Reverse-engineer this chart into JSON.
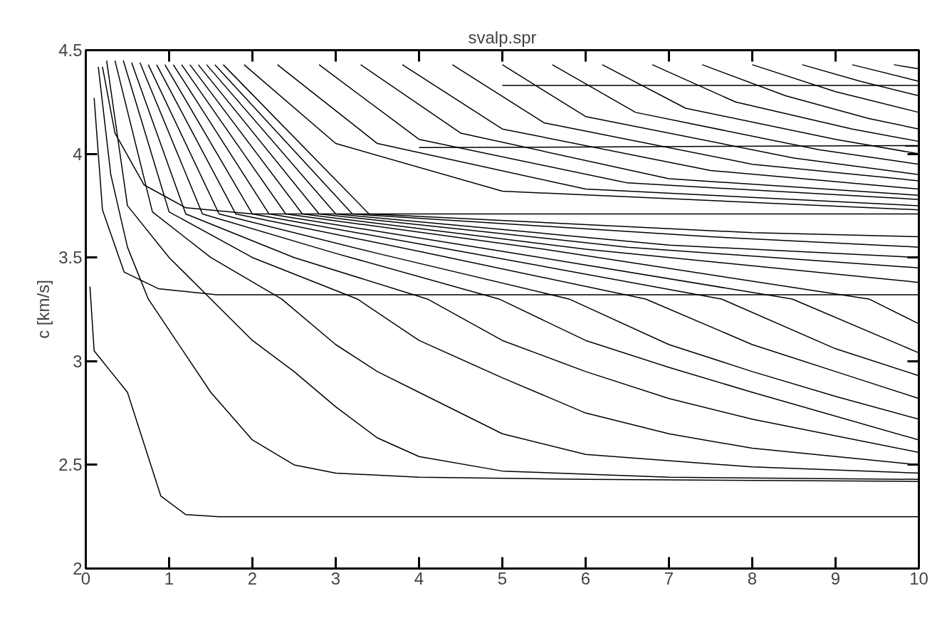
{
  "chart_data": {
    "type": "line",
    "title": "svalp.spr",
    "ylabel": "c [km/s]",
    "xlim": [
      0,
      10
    ],
    "ylim": [
      2,
      4.5
    ],
    "xticks": [
      0,
      1,
      2,
      3,
      4,
      5,
      6,
      7,
      8,
      9,
      10
    ],
    "yticks": [
      2,
      2.5,
      3,
      3.5,
      4,
      4.5
    ],
    "series": [
      {
        "color": "#000000",
        "x": [
          0.05,
          0.1,
          0.3,
          0.5,
          0.7,
          0.9,
          1.2,
          1.6,
          3,
          10
        ],
        "values": [
          3.36,
          3.05,
          2.95,
          2.85,
          2.6,
          2.35,
          2.26,
          2.25,
          2.25,
          2.25
        ]
      },
      {
        "color": "#000000",
        "x": [
          0.15,
          0.3,
          0.5,
          0.75,
          1.0,
          1.5,
          2.0,
          2.5,
          3,
          4,
          6,
          10
        ],
        "values": [
          4.42,
          3.9,
          3.55,
          3.3,
          3.15,
          2.85,
          2.62,
          2.5,
          2.46,
          2.44,
          2.43,
          2.42
        ]
      },
      {
        "color": "#000000",
        "x": [
          0.25,
          0.5,
          1.0,
          1.5,
          2,
          2.5,
          3,
          3.5,
          4,
          5,
          7,
          10
        ],
        "values": [
          4.45,
          3.75,
          3.5,
          3.3,
          3.1,
          2.95,
          2.78,
          2.63,
          2.54,
          2.47,
          2.44,
          2.43
        ]
      },
      {
        "color": "#000000",
        "x": [
          0.35,
          0.8,
          1.5,
          2.35,
          3,
          3.5,
          4,
          5,
          6,
          8,
          10
        ],
        "values": [
          4.45,
          3.72,
          3.5,
          3.3,
          3.08,
          2.95,
          2.85,
          2.65,
          2.55,
          2.49,
          2.46
        ]
      },
      {
        "color": "#000000",
        "x": [
          0.45,
          1.0,
          2,
          3.26,
          4,
          5,
          6,
          7,
          8,
          10
        ],
        "values": [
          4.45,
          3.72,
          3.5,
          3.3,
          3.1,
          2.92,
          2.75,
          2.65,
          2.58,
          2.5
        ]
      },
      {
        "color": "#000000",
        "x": [
          0.55,
          1.2,
          2.5,
          4.1,
          5,
          6,
          7,
          8,
          10
        ],
        "values": [
          4.44,
          3.71,
          3.5,
          3.3,
          3.1,
          2.95,
          2.82,
          2.72,
          2.56
        ]
      },
      {
        "color": "#000000",
        "x": [
          0.65,
          1.4,
          3,
          4.96,
          6,
          7,
          8,
          10
        ],
        "values": [
          4.44,
          3.71,
          3.52,
          3.3,
          3.1,
          2.97,
          2.85,
          2.62
        ]
      },
      {
        "color": "#000000",
        "x": [
          0.75,
          1.6,
          3.5,
          5.8,
          7,
          8,
          9,
          10
        ],
        "values": [
          4.43,
          3.71,
          3.52,
          3.3,
          3.08,
          2.95,
          2.83,
          2.72
        ]
      },
      {
        "color": "#000000",
        "x": [
          0.85,
          1.8,
          4,
          6.72,
          8,
          9,
          10
        ],
        "values": [
          4.43,
          3.71,
          3.53,
          3.3,
          3.08,
          2.95,
          2.82
        ]
      },
      {
        "color": "#000000",
        "x": [
          0.95,
          2.0,
          4.5,
          7.63,
          9,
          10
        ],
        "values": [
          4.43,
          3.71,
          3.53,
          3.3,
          3.06,
          2.93
        ]
      },
      {
        "color": "#000000",
        "x": [
          1.05,
          2.2,
          5,
          8.48,
          10
        ],
        "values": [
          4.43,
          3.71,
          3.53,
          3.3,
          3.04
        ]
      },
      {
        "color": "#000000",
        "x": [
          1.15,
          2.4,
          5.5,
          9.4,
          10
        ],
        "values": [
          4.43,
          3.71,
          3.54,
          3.3,
          3.18
        ]
      },
      {
        "color": "#000000",
        "x": [
          1.25,
          2.6,
          6,
          10
        ],
        "values": [
          4.43,
          3.71,
          3.54,
          3.38
        ]
      },
      {
        "color": "#000000",
        "x": [
          1.35,
          2.8,
          6.5,
          10
        ],
        "values": [
          4.43,
          3.71,
          3.55,
          3.45
        ]
      },
      {
        "color": "#000000",
        "x": [
          1.45,
          3.0,
          7,
          10
        ],
        "values": [
          4.43,
          3.71,
          3.56,
          3.5
        ]
      },
      {
        "color": "#000000",
        "x": [
          1.55,
          3.2,
          7.5,
          10
        ],
        "values": [
          4.43,
          3.71,
          3.6,
          3.55
        ]
      },
      {
        "color": "#000000",
        "x": [
          1.65,
          3.4,
          8,
          10
        ],
        "values": [
          4.43,
          3.71,
          3.62,
          3.6
        ]
      },
      {
        "color": "#000000",
        "x": [
          0.1,
          0.2,
          0.46,
          0.87,
          1.57,
          5,
          10
        ],
        "values": [
          4.27,
          3.73,
          3.43,
          3.35,
          3.32,
          3.32,
          3.32
        ]
      },
      {
        "color": "#000000",
        "x": [
          0.2,
          0.35,
          0.7,
          1.2,
          2,
          10
        ],
        "values": [
          4.42,
          4.1,
          3.85,
          3.74,
          3.71,
          3.71
        ]
      },
      {
        "color": "#000000",
        "x": [
          1.9,
          3,
          5,
          10
        ],
        "values": [
          4.43,
          4.05,
          3.82,
          3.73
        ]
      },
      {
        "color": "#000000",
        "x": [
          2.3,
          3.5,
          6,
          10
        ],
        "values": [
          4.43,
          4.05,
          3.83,
          3.75
        ]
      },
      {
        "color": "#000000",
        "x": [
          2.8,
          4,
          6.5,
          10
        ],
        "values": [
          4.43,
          4.07,
          3.86,
          3.78
        ]
      },
      {
        "color": "#000000",
        "x": [
          3.3,
          4.5,
          7,
          10
        ],
        "values": [
          4.43,
          4.1,
          3.88,
          3.8
        ]
      },
      {
        "color": "#000000",
        "x": [
          3.8,
          5,
          7.5,
          10
        ],
        "values": [
          4.43,
          4.12,
          3.92,
          3.83
        ]
      },
      {
        "color": "#000000",
        "x": [
          4.4,
          5.5,
          8,
          10
        ],
        "values": [
          4.43,
          4.15,
          3.95,
          3.87
        ]
      },
      {
        "color": "#000000",
        "x": [
          5.0,
          6,
          8.5,
          10
        ],
        "values": [
          4.43,
          4.18,
          3.98,
          3.9
        ]
      },
      {
        "color": "#000000",
        "x": [
          5.6,
          6.6,
          8.8,
          10
        ],
        "values": [
          4.43,
          4.2,
          4.02,
          3.95
        ]
      },
      {
        "color": "#000000",
        "x": [
          6.2,
          7.2,
          9,
          10
        ],
        "values": [
          4.43,
          4.22,
          4.07,
          4.0
        ]
      },
      {
        "color": "#000000",
        "x": [
          6.8,
          7.8,
          9.2,
          10
        ],
        "values": [
          4.43,
          4.25,
          4.12,
          4.06
        ]
      },
      {
        "color": "#000000",
        "x": [
          7.4,
          8.4,
          9.4,
          10
        ],
        "values": [
          4.43,
          4.28,
          4.17,
          4.12
        ]
      },
      {
        "color": "#000000",
        "x": [
          8.0,
          9,
          10
        ],
        "values": [
          4.43,
          4.3,
          4.2
        ]
      },
      {
        "color": "#000000",
        "x": [
          8.6,
          9.3,
          10
        ],
        "values": [
          4.43,
          4.35,
          4.28
        ]
      },
      {
        "color": "#000000",
        "x": [
          9.2,
          10
        ],
        "values": [
          4.43,
          4.35
        ]
      },
      {
        "color": "#000000",
        "x": [
          9.7,
          10
        ],
        "values": [
          4.43,
          4.41
        ]
      },
      {
        "color": "#000000",
        "x": [
          5,
          10
        ],
        "values": [
          4.33,
          4.33
        ]
      },
      {
        "color": "#000000",
        "x": [
          4,
          10
        ],
        "values": [
          4.03,
          4.04
        ]
      }
    ]
  }
}
